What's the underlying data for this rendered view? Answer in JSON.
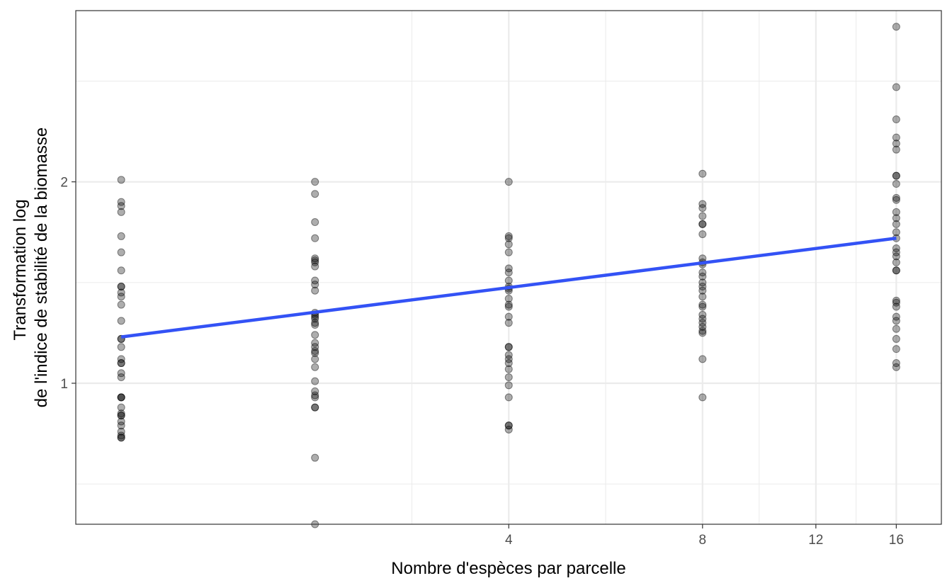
{
  "chart_data": {
    "type": "scatter",
    "xlabel": "Nombre d'espèces par parcelle",
    "ylabel_lines": [
      "Transformation log",
      "de l'indice de stabilité de la biomasse"
    ],
    "x_scale": "log2",
    "xlim": [
      0.85,
      18.8
    ],
    "ylim": [
      0.3,
      2.85
    ],
    "x_ticks": [
      4,
      8,
      12,
      16
    ],
    "y_ticks": [
      1,
      2
    ],
    "grid": true,
    "colors": {
      "points": "#000000",
      "fit_line": "#3352f5",
      "grid": "#ebebeb",
      "panel_border": "#333333"
    },
    "points": [
      {
        "x": 1,
        "y": [
          2.01,
          1.9,
          1.88,
          1.85,
          1.73,
          1.65,
          1.56,
          1.48,
          1.48,
          1.45,
          1.43,
          1.39,
          1.31,
          1.22,
          1.22,
          1.18,
          1.12,
          1.1,
          1.1,
          1.05,
          1.03,
          0.93,
          0.93,
          0.93,
          0.88,
          0.85,
          0.84,
          0.84,
          0.81,
          0.79,
          0.76,
          0.74,
          0.73,
          0.73
        ]
      },
      {
        "x": 2,
        "y": [
          2.0,
          1.94,
          1.8,
          1.72,
          1.62,
          1.61,
          1.6,
          1.58,
          1.51,
          1.49,
          1.46,
          1.35,
          1.34,
          1.33,
          1.32,
          1.3,
          1.29,
          1.24,
          1.2,
          1.18,
          1.16,
          1.15,
          1.12,
          1.08,
          1.01,
          0.96,
          0.94,
          0.93,
          0.88,
          0.88,
          0.63,
          0.3
        ]
      },
      {
        "x": 4,
        "y": [
          2.0,
          1.73,
          1.72,
          1.69,
          1.65,
          1.57,
          1.55,
          1.51,
          1.48,
          1.47,
          1.46,
          1.42,
          1.39,
          1.38,
          1.33,
          1.3,
          1.18,
          1.18,
          1.14,
          1.12,
          1.1,
          1.07,
          1.03,
          0.99,
          0.93,
          0.79,
          0.79,
          0.77
        ]
      },
      {
        "x": 8,
        "y": [
          2.04,
          1.89,
          1.87,
          1.83,
          1.79,
          1.79,
          1.74,
          1.62,
          1.6,
          1.59,
          1.55,
          1.53,
          1.5,
          1.48,
          1.46,
          1.43,
          1.39,
          1.38,
          1.34,
          1.32,
          1.3,
          1.28,
          1.26,
          1.25,
          1.12,
          0.93
        ]
      },
      {
        "x": 16,
        "y": [
          2.77,
          2.47,
          2.31,
          2.22,
          2.19,
          2.16,
          2.03,
          2.03,
          1.99,
          1.92,
          1.91,
          1.85,
          1.82,
          1.79,
          1.75,
          1.72,
          1.67,
          1.65,
          1.63,
          1.6,
          1.56,
          1.56,
          1.41,
          1.4,
          1.38,
          1.33,
          1.31,
          1.27,
          1.22,
          1.17,
          1.1,
          1.08
        ]
      }
    ],
    "fit_line": {
      "x": [
        1,
        16
      ],
      "y": [
        1.23,
        1.72
      ]
    }
  }
}
